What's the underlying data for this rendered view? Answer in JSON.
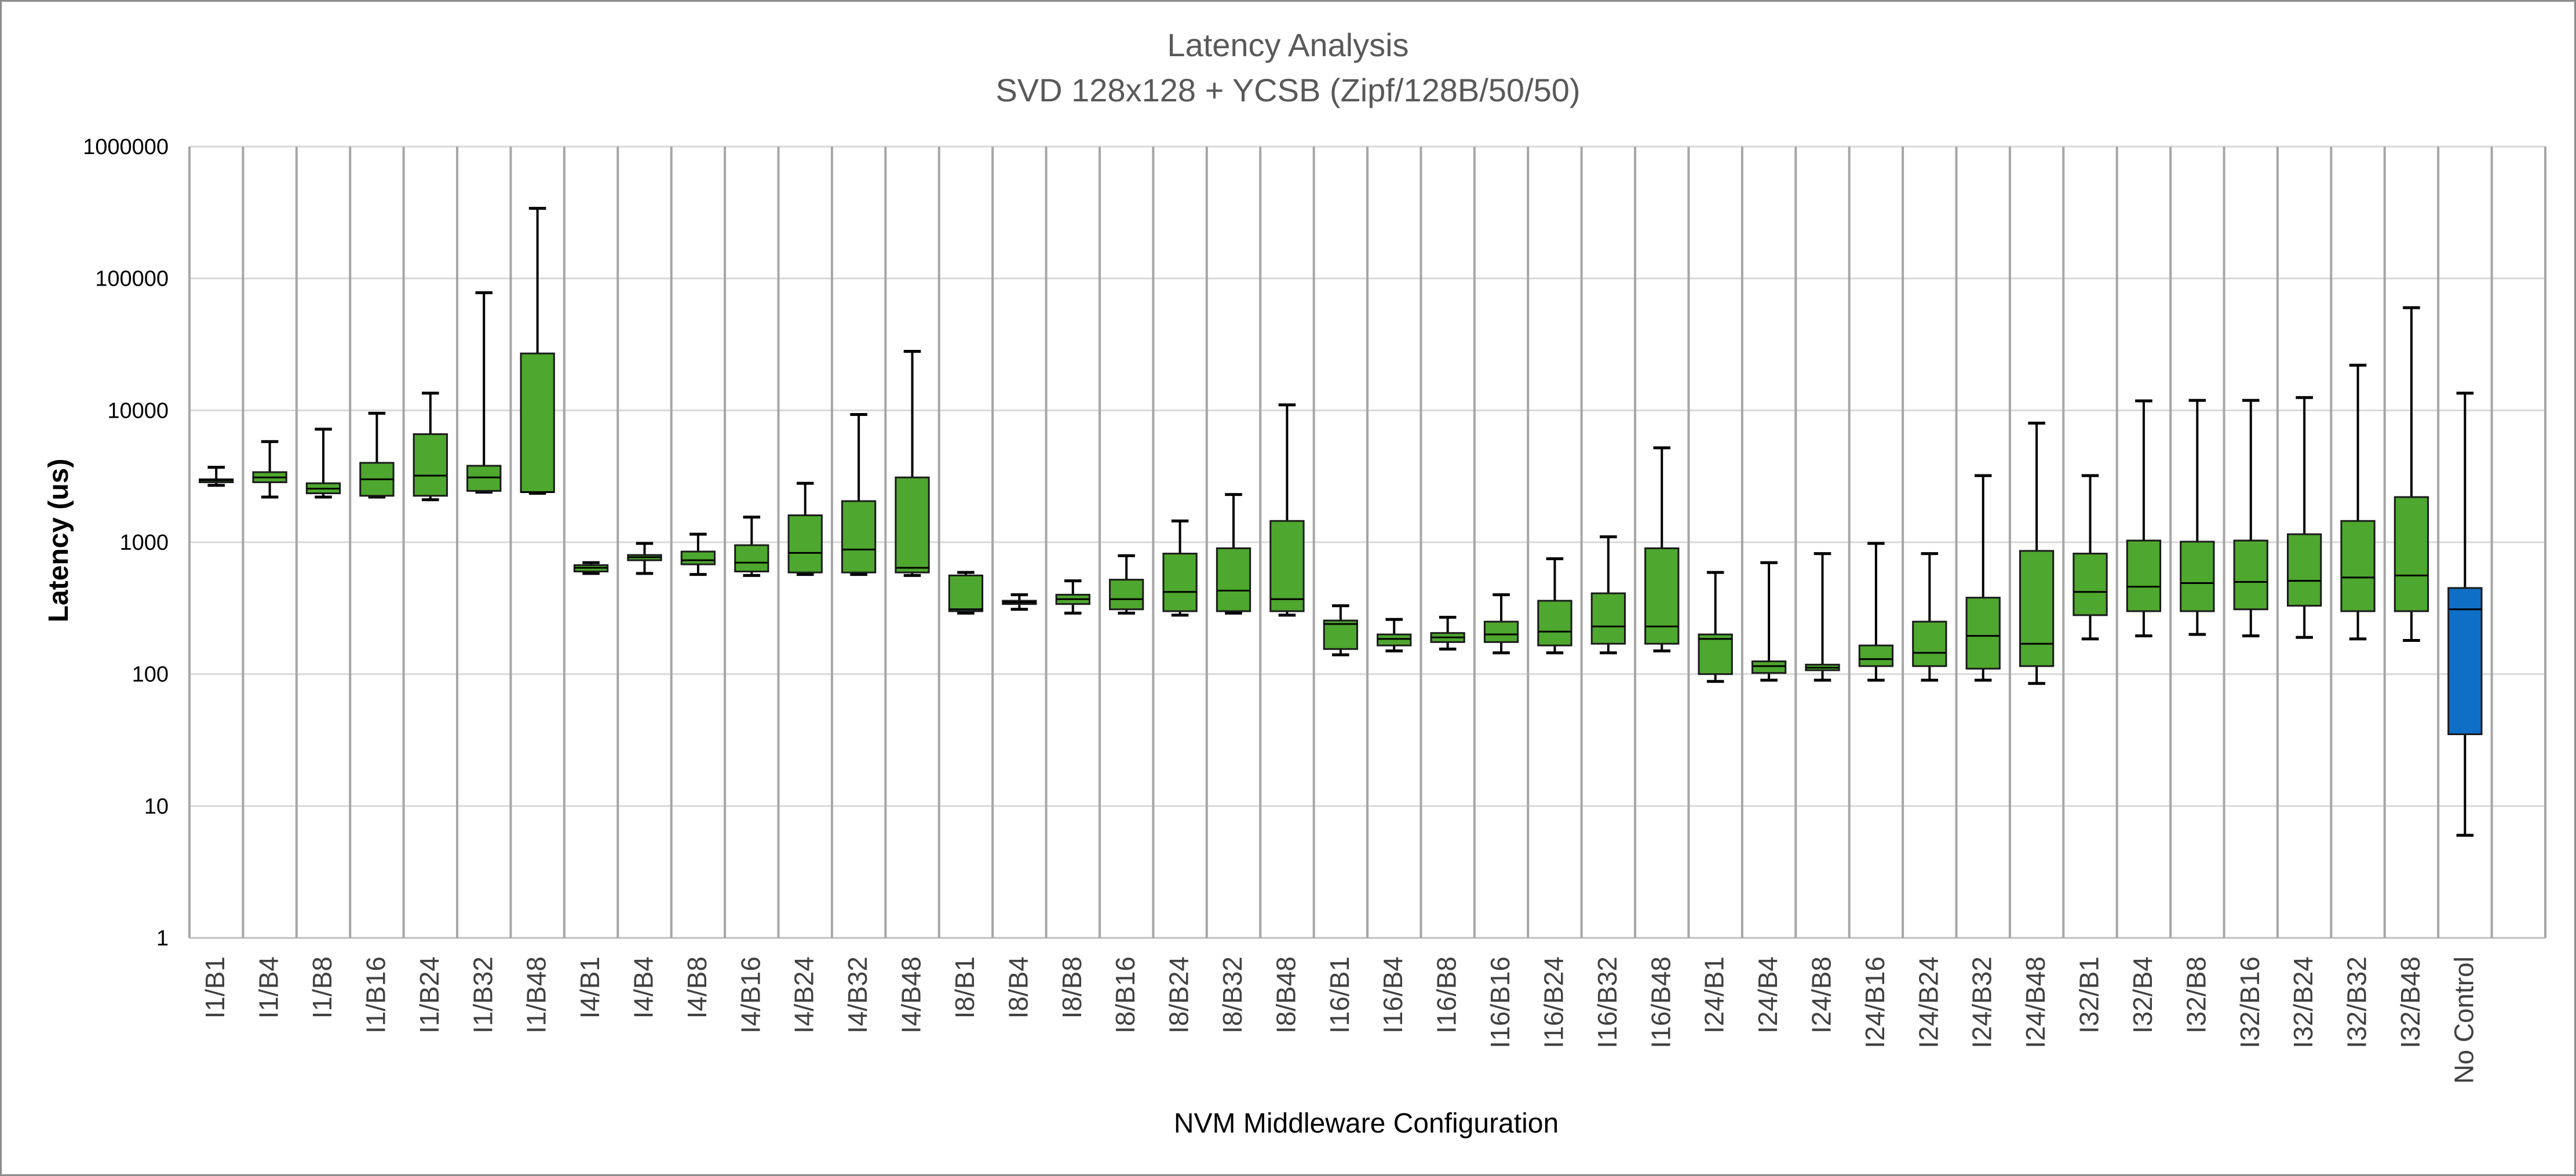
{
  "chart_data": {
    "type": "boxplot",
    "title": "Latency Analysis",
    "subtitle": "SVD 128x128 + YCSB (Zipf/128B/50/50)",
    "xlabel": "NVM Middleware Configuration",
    "ylabel": "Latency (us)",
    "yscale": "log",
    "ylim": [
      1,
      1000000
    ],
    "yticks": [
      "1",
      "10",
      "100",
      "1000",
      "10000",
      "100000",
      "1000000"
    ],
    "grid": "horizontal",
    "colors": {
      "default_box": "#4ea72e",
      "highlight_box": "#0f6fc6",
      "line": "#000000",
      "grid": "#d9d9d9",
      "separator": "#a6a6a6"
    },
    "boxes": [
      {
        "label": "I1/B1",
        "min": 2700,
        "q1": 2850,
        "median": 2950,
        "q3": 3000,
        "max": 3700
      },
      {
        "label": "I1/B4",
        "min": 2200,
        "q1": 2850,
        "median": 3100,
        "q3": 3400,
        "max": 5800
      },
      {
        "label": "I1/B8",
        "min": 2200,
        "q1": 2350,
        "median": 2550,
        "q3": 2800,
        "max": 7200
      },
      {
        "label": "I1/B16",
        "min": 2200,
        "q1": 2250,
        "median": 3000,
        "q3": 4000,
        "max": 9500
      },
      {
        "label": "I1/B24",
        "min": 2100,
        "q1": 2250,
        "median": 3200,
        "q3": 6600,
        "max": 13500
      },
      {
        "label": "I1/B32",
        "min": 2400,
        "q1": 2450,
        "median": 3100,
        "q3": 3800,
        "max": 78000
      },
      {
        "label": "I1/B48",
        "min": 2350,
        "q1": 2400,
        "median": 2400,
        "q3": 27000,
        "max": 340000
      },
      {
        "label": "I4/B1",
        "min": 580,
        "q1": 600,
        "median": 640,
        "q3": 670,
        "max": 700
      },
      {
        "label": "I4/B4",
        "min": 580,
        "q1": 730,
        "median": 770,
        "q3": 800,
        "max": 980
      },
      {
        "label": "I4/B8",
        "min": 570,
        "q1": 680,
        "median": 730,
        "q3": 850,
        "max": 1150
      },
      {
        "label": "I4/B16",
        "min": 560,
        "q1": 600,
        "median": 700,
        "q3": 950,
        "max": 1550
      },
      {
        "label": "I4/B24",
        "min": 570,
        "q1": 590,
        "median": 830,
        "q3": 1600,
        "max": 2800
      },
      {
        "label": "I4/B32",
        "min": 570,
        "q1": 590,
        "median": 880,
        "q3": 2050,
        "max": 9300
      },
      {
        "label": "I4/B48",
        "min": 560,
        "q1": 590,
        "median": 640,
        "q3": 3100,
        "max": 28000
      },
      {
        "label": "I8/B1",
        "min": 290,
        "q1": 300,
        "median": 310,
        "q3": 560,
        "max": 590
      },
      {
        "label": "I8/B4",
        "min": 310,
        "q1": 340,
        "median": 350,
        "q3": 360,
        "max": 400
      },
      {
        "label": "I8/B8",
        "min": 290,
        "q1": 340,
        "median": 370,
        "q3": 400,
        "max": 510
      },
      {
        "label": "I8/B16",
        "min": 290,
        "q1": 310,
        "median": 370,
        "q3": 520,
        "max": 790
      },
      {
        "label": "I8/B24",
        "min": 280,
        "q1": 300,
        "median": 420,
        "q3": 820,
        "max": 1450
      },
      {
        "label": "I8/B32",
        "min": 290,
        "q1": 300,
        "median": 430,
        "q3": 900,
        "max": 2300
      },
      {
        "label": "I8/B48",
        "min": 280,
        "q1": 300,
        "median": 370,
        "q3": 1450,
        "max": 11000
      },
      {
        "label": "I16/B1",
        "min": 140,
        "q1": 155,
        "median": 240,
        "q3": 255,
        "max": 330
      },
      {
        "label": "I16/B4",
        "min": 150,
        "q1": 165,
        "median": 185,
        "q3": 200,
        "max": 260
      },
      {
        "label": "I16/B8",
        "min": 155,
        "q1": 175,
        "median": 190,
        "q3": 205,
        "max": 270
      },
      {
        "label": "I16/B16",
        "min": 145,
        "q1": 175,
        "median": 200,
        "q3": 250,
        "max": 400
      },
      {
        "label": "I16/B24",
        "min": 145,
        "q1": 165,
        "median": 210,
        "q3": 360,
        "max": 750
      },
      {
        "label": "I16/B32",
        "min": 145,
        "q1": 170,
        "median": 230,
        "q3": 410,
        "max": 1100
      },
      {
        "label": "I16/B48",
        "min": 150,
        "q1": 170,
        "median": 230,
        "q3": 900,
        "max": 5200
      },
      {
        "label": "I24/B1",
        "min": 88,
        "q1": 100,
        "median": 185,
        "q3": 200,
        "max": 590
      },
      {
        "label": "I24/B4",
        "min": 90,
        "q1": 102,
        "median": 115,
        "q3": 125,
        "max": 700
      },
      {
        "label": "I24/B8",
        "min": 90,
        "q1": 107,
        "median": 112,
        "q3": 118,
        "max": 820
      },
      {
        "label": "I24/B16",
        "min": 90,
        "q1": 115,
        "median": 130,
        "q3": 165,
        "max": 980
      },
      {
        "label": "I24/B24",
        "min": 90,
        "q1": 115,
        "median": 145,
        "q3": 250,
        "max": 820
      },
      {
        "label": "I24/B32",
        "min": 90,
        "q1": 110,
        "median": 195,
        "q3": 380,
        "max": 3200
      },
      {
        "label": "I24/B48",
        "min": 85,
        "q1": 115,
        "median": 170,
        "q3": 860,
        "max": 8000
      },
      {
        "label": "I32/B1",
        "min": 185,
        "q1": 280,
        "median": 420,
        "q3": 820,
        "max": 3200
      },
      {
        "label": "I32/B4",
        "min": 195,
        "q1": 300,
        "median": 460,
        "q3": 1030,
        "max": 11800
      },
      {
        "label": "I32/B8",
        "min": 200,
        "q1": 300,
        "median": 490,
        "q3": 1010,
        "max": 11900
      },
      {
        "label": "I32/B16",
        "min": 195,
        "q1": 310,
        "median": 500,
        "q3": 1030,
        "max": 11900
      },
      {
        "label": "I32/B24",
        "min": 190,
        "q1": 330,
        "median": 510,
        "q3": 1150,
        "max": 12500
      },
      {
        "label": "I32/B32",
        "min": 185,
        "q1": 300,
        "median": 540,
        "q3": 1450,
        "max": 22000
      },
      {
        "label": "I32/B48",
        "min": 180,
        "q1": 300,
        "median": 560,
        "q3": 2200,
        "max": 60000
      },
      {
        "label": "No Control",
        "min": 6,
        "q1": 35,
        "median": 310,
        "q3": 450,
        "max": 13500,
        "highlight": true
      }
    ]
  }
}
